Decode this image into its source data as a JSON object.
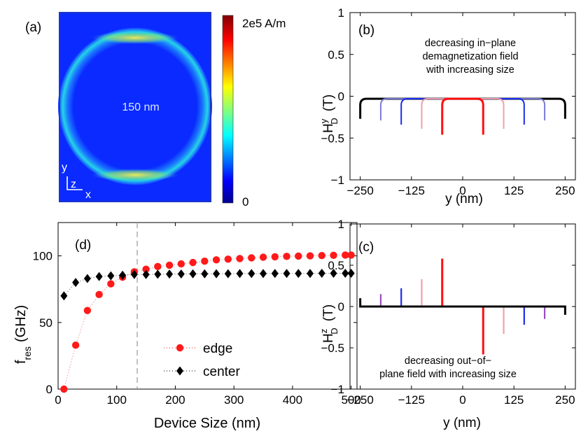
{
  "chart_data": [
    {
      "panel": "(a)",
      "type": "heatmap",
      "center_label": "150 nm",
      "colorbar_max_label": "2e5 A/m",
      "colorbar_min_label": "0",
      "axis_y_label": "y",
      "axis_z_label": "z",
      "axis_x_label": "x",
      "colors": {
        "low": "#0a2aff",
        "mid": "#22d8e8",
        "hot": "#f0e84a",
        "max": "#8b0000",
        "frame": "#1c35c8"
      }
    },
    {
      "panel": "(b)",
      "type": "line",
      "xlabel": "y (nm)",
      "ylabel_main": "H",
      "ylabel_sup": "y",
      "ylabel_sub": "D",
      "ylabel_unit": "(T)",
      "xlim": [
        -275,
        275
      ],
      "ylim": [
        -1,
        1
      ],
      "xticks": [
        -250,
        -125,
        0,
        125,
        250
      ],
      "yticks": [
        1,
        0.5,
        0,
        -0.5,
        -1
      ],
      "annotation": [
        "decreasing in−plane",
        "demagnetization field",
        "with increasing size"
      ],
      "series": [
        {
          "half_width": 250,
          "color": "#000000",
          "edge": -0.27,
          "top": -0.03
        },
        {
          "half_width": 200,
          "color": "#7b7bd8",
          "edge": -0.29,
          "top": -0.03
        },
        {
          "half_width": 150,
          "color": "#1a2cf0",
          "edge": -0.34,
          "top": -0.03
        },
        {
          "half_width": 100,
          "color": "#f0a0a8",
          "edge": -0.39,
          "top": -0.03
        },
        {
          "half_width": 50,
          "color": "#ff1010",
          "edge": -0.46,
          "top": -0.03
        }
      ]
    },
    {
      "panel": "(c)",
      "type": "line",
      "xlabel": "y (nm)",
      "ylabel_main": "H",
      "ylabel_sup": "z",
      "ylabel_sub": "D",
      "ylabel_unit": "(T)",
      "xlim": [
        -275,
        275
      ],
      "ylim": [
        -1,
        1
      ],
      "xticks": [
        -250,
        -125,
        0,
        125,
        250
      ],
      "yticks": [
        1,
        0.5,
        0,
        -0.5,
        -1
      ],
      "annotation": [
        "decreasing out−of−",
        "plane field with increasing size"
      ],
      "series": [
        {
          "half_width": 250,
          "color": "#000000",
          "spike": 0.1
        },
        {
          "half_width": 200,
          "color": "#9a4fc0",
          "spike": 0.15
        },
        {
          "half_width": 150,
          "color": "#1a2cf0",
          "spike": 0.22
        },
        {
          "half_width": 100,
          "color": "#f0a0a8",
          "spike": 0.33
        },
        {
          "half_width": 50,
          "color": "#ff1010",
          "spike": 0.58
        }
      ]
    },
    {
      "panel": "(d)",
      "type": "scatter",
      "xlabel": "Device Size (nm)",
      "ylabel_main": "f",
      "ylabel_sub": "res",
      "ylabel_unit": "(GHz)",
      "xlim": [
        0,
        510
      ],
      "ylim": [
        0,
        125
      ],
      "xticks": [
        0,
        100,
        200,
        300,
        400,
        500
      ],
      "yticks": [
        0,
        50,
        100
      ],
      "dashed_vline_x": 135,
      "x": [
        10,
        30,
        50,
        70,
        90,
        110,
        130,
        150,
        170,
        190,
        210,
        230,
        250,
        270,
        290,
        310,
        330,
        350,
        370,
        390,
        410,
        430,
        450,
        470,
        490,
        500
      ],
      "series": [
        {
          "name": "edge",
          "color": "#ff1a1a",
          "marker": "circle",
          "values": [
            0,
            33,
            59,
            71,
            79,
            84,
            88,
            90,
            92,
            93,
            94,
            95,
            96,
            97,
            97.5,
            98,
            98.5,
            99,
            99.3,
            99.6,
            99.8,
            100,
            100.2,
            100.4,
            100.6,
            100.6
          ]
        },
        {
          "name": "center",
          "color": "#000000",
          "marker": "diamond",
          "values": [
            70,
            80,
            83,
            84.5,
            85,
            85.5,
            86,
            86,
            86.2,
            86.3,
            86.4,
            86.5,
            86.5,
            86.6,
            86.6,
            86.7,
            86.7,
            86.7,
            86.8,
            86.8,
            86.8,
            86.8,
            86.9,
            86.9,
            86.9,
            86.9
          ]
        }
      ]
    }
  ]
}
